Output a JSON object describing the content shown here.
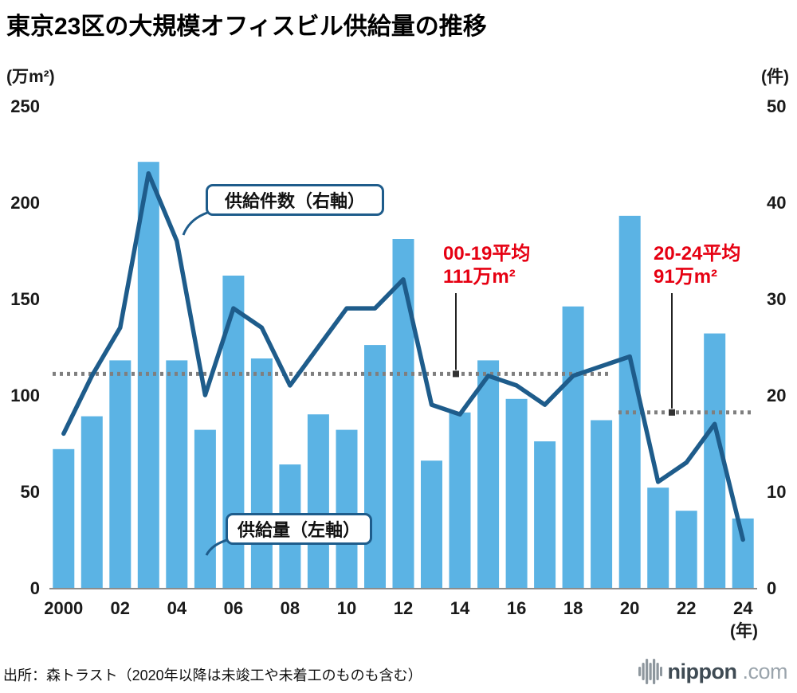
{
  "title": "東京23区の大規模オフィスビル供給量の推移",
  "source": "出所：森トラスト（2020年以降は未竣工や未着工のものも含む）",
  "logo": {
    "brand": "nippon",
    "tld": ".com"
  },
  "chart_data": {
    "type": "bar+line",
    "title": "東京23区の大規模オフィスビル供給量の推移",
    "left_axis": {
      "unit": "(万m²)",
      "min": 0,
      "max": 250,
      "ticks": [
        0,
        50,
        100,
        150,
        200,
        250
      ]
    },
    "right_axis": {
      "unit": "(件)",
      "min": 0,
      "max": 50,
      "ticks": [
        0,
        10,
        20,
        30,
        40,
        50
      ]
    },
    "x_axis": {
      "tick_labels": [
        "2000",
        "02",
        "04",
        "06",
        "08",
        "10",
        "12",
        "14",
        "16",
        "18",
        "20",
        "22",
        "24"
      ],
      "unit": "(年)"
    },
    "years": [
      2000,
      2001,
      2002,
      2003,
      2004,
      2005,
      2006,
      2007,
      2008,
      2009,
      2010,
      2011,
      2012,
      2013,
      2014,
      2015,
      2016,
      2017,
      2018,
      2019,
      2020,
      2021,
      2022,
      2023,
      2024
    ],
    "bars": {
      "name": "供給量（左軸）",
      "color": "#5bb3e4",
      "values": [
        72,
        89,
        118,
        221,
        118,
        82,
        162,
        119,
        64,
        90,
        82,
        126,
        181,
        66,
        91,
        118,
        98,
        76,
        146,
        87,
        193,
        52,
        40,
        132,
        36
      ]
    },
    "line": {
      "name": "供給件数（右軸）",
      "color": "#1e5c8b",
      "values": [
        16,
        22,
        27,
        43,
        36,
        20,
        29,
        27,
        21,
        25,
        29,
        29,
        32,
        19,
        18,
        22,
        21,
        19,
        22,
        23,
        24,
        11,
        13,
        17,
        5
      ]
    },
    "annotations": {
      "line_label": "供給件数（右軸）",
      "bar_label": "供給量（左軸）",
      "avg1": {
        "line1": "00-19平均",
        "line2": "111万m²",
        "value": 111
      },
      "avg2": {
        "line1": "20-24平均",
        "line2": "91万m²",
        "value": 91
      }
    },
    "grid": false,
    "legend_position": "none"
  }
}
